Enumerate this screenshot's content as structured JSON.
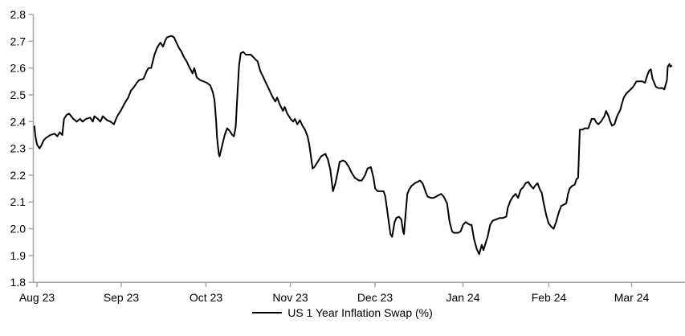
{
  "chart_data": {
    "type": "line",
    "title": "",
    "grid": false,
    "legend": {
      "position": "bottom-center",
      "entries": [
        "US 1 Year Inflation Swap (%)"
      ]
    },
    "colors": {
      "line": "#000000",
      "axis": "#a6a6a6",
      "text": "#000000",
      "background": "#ffffff"
    },
    "x_axis": {
      "unit": "months since Aug 2023",
      "tick_labels": [
        "Aug 23",
        "Sep 23",
        "Oct 23",
        "Nov 23",
        "Dec 23",
        "Jan 24",
        "Feb 24",
        "Mar 24"
      ],
      "range": [
        0,
        7.65
      ]
    },
    "y_axis": {
      "label": "",
      "ticks": [
        1.8,
        1.9,
        2.0,
        2.1,
        2.2,
        2.3,
        2.4,
        2.5,
        2.6,
        2.7,
        2.8
      ],
      "tick_labels": [
        "1.8",
        "1.9",
        "2.0",
        "2.1",
        "2.2",
        "2.3",
        "2.4",
        "2.5",
        "2.6",
        "2.7",
        "2.8"
      ],
      "range": [
        1.8,
        2.8
      ]
    },
    "series": [
      {
        "name": "US 1 Year Inflation Swap (%)",
        "color": "#000000",
        "points": [
          [
            -0.03,
            2.385
          ],
          [
            -0.02,
            2.35
          ],
          [
            0.0,
            2.315
          ],
          [
            0.03,
            2.3
          ],
          [
            0.05,
            2.31
          ],
          [
            0.08,
            2.33
          ],
          [
            0.11,
            2.34
          ],
          [
            0.16,
            2.35
          ],
          [
            0.21,
            2.355
          ],
          [
            0.24,
            2.345
          ],
          [
            0.27,
            2.36
          ],
          [
            0.3,
            2.35
          ],
          [
            0.32,
            2.41
          ],
          [
            0.35,
            2.425
          ],
          [
            0.38,
            2.43
          ],
          [
            0.43,
            2.41
          ],
          [
            0.47,
            2.4
          ],
          [
            0.51,
            2.41
          ],
          [
            0.54,
            2.4
          ],
          [
            0.58,
            2.41
          ],
          [
            0.63,
            2.415
          ],
          [
            0.66,
            2.4
          ],
          [
            0.68,
            2.42
          ],
          [
            0.72,
            2.41
          ],
          [
            0.75,
            2.4
          ],
          [
            0.78,
            2.42
          ],
          [
            0.83,
            2.405
          ],
          [
            0.87,
            2.4
          ],
          [
            0.91,
            2.39
          ],
          [
            0.95,
            2.42
          ],
          [
            0.99,
            2.44
          ],
          [
            1.04,
            2.47
          ],
          [
            1.08,
            2.49
          ],
          [
            1.11,
            2.515
          ],
          [
            1.15,
            2.53
          ],
          [
            1.18,
            2.545
          ],
          [
            1.21,
            2.555
          ],
          [
            1.26,
            2.56
          ],
          [
            1.3,
            2.59
          ],
          [
            1.32,
            2.6
          ],
          [
            1.35,
            2.6
          ],
          [
            1.39,
            2.65
          ],
          [
            1.42,
            2.675
          ],
          [
            1.46,
            2.695
          ],
          [
            1.49,
            2.68
          ],
          [
            1.52,
            2.705
          ],
          [
            1.54,
            2.715
          ],
          [
            1.59,
            2.72
          ],
          [
            1.62,
            2.715
          ],
          [
            1.65,
            2.695
          ],
          [
            1.68,
            2.675
          ],
          [
            1.71,
            2.66
          ],
          [
            1.74,
            2.64
          ],
          [
            1.77,
            2.625
          ],
          [
            1.8,
            2.605
          ],
          [
            1.84,
            2.58
          ],
          [
            1.86,
            2.6
          ],
          [
            1.89,
            2.565
          ],
          [
            1.93,
            2.555
          ],
          [
            1.97,
            2.55
          ],
          [
            2.01,
            2.545
          ],
          [
            2.05,
            2.535
          ],
          [
            2.08,
            2.51
          ],
          [
            2.1,
            2.48
          ],
          [
            2.12,
            2.4
          ],
          [
            2.13,
            2.34
          ],
          [
            2.15,
            2.28
          ],
          [
            2.16,
            2.27
          ],
          [
            2.19,
            2.31
          ],
          [
            2.22,
            2.35
          ],
          [
            2.25,
            2.375
          ],
          [
            2.28,
            2.365
          ],
          [
            2.31,
            2.35
          ],
          [
            2.33,
            2.345
          ],
          [
            2.35,
            2.38
          ],
          [
            2.37,
            2.5
          ],
          [
            2.39,
            2.61
          ],
          [
            2.41,
            2.655
          ],
          [
            2.44,
            2.66
          ],
          [
            2.47,
            2.65
          ],
          [
            2.5,
            2.65
          ],
          [
            2.53,
            2.65
          ],
          [
            2.56,
            2.64
          ],
          [
            2.59,
            2.63
          ],
          [
            2.61,
            2.625
          ],
          [
            2.64,
            2.59
          ],
          [
            2.67,
            2.57
          ],
          [
            2.7,
            2.55
          ],
          [
            2.73,
            2.53
          ],
          [
            2.76,
            2.51
          ],
          [
            2.79,
            2.49
          ],
          [
            2.82,
            2.475
          ],
          [
            2.84,
            2.49
          ],
          [
            2.87,
            2.465
          ],
          [
            2.91,
            2.44
          ],
          [
            2.93,
            2.455
          ],
          [
            2.96,
            2.43
          ],
          [
            3.0,
            2.41
          ],
          [
            3.03,
            2.4
          ],
          [
            3.05,
            2.41
          ],
          [
            3.08,
            2.39
          ],
          [
            3.11,
            2.405
          ],
          [
            3.14,
            2.385
          ],
          [
            3.17,
            2.37
          ],
          [
            3.2,
            2.345
          ],
          [
            3.22,
            2.315
          ],
          [
            3.26,
            2.225
          ],
          [
            3.28,
            2.23
          ],
          [
            3.32,
            2.25
          ],
          [
            3.36,
            2.27
          ],
          [
            3.41,
            2.28
          ],
          [
            3.44,
            2.26
          ],
          [
            3.47,
            2.22
          ],
          [
            3.5,
            2.14
          ],
          [
            3.53,
            2.17
          ],
          [
            3.55,
            2.2
          ],
          [
            3.58,
            2.25
          ],
          [
            3.62,
            2.255
          ],
          [
            3.65,
            2.25
          ],
          [
            3.69,
            2.23
          ],
          [
            3.72,
            2.21
          ],
          [
            3.76,
            2.19
          ],
          [
            3.81,
            2.18
          ],
          [
            3.84,
            2.18
          ],
          [
            3.88,
            2.2
          ],
          [
            3.91,
            2.225
          ],
          [
            3.95,
            2.23
          ],
          [
            3.98,
            2.19
          ],
          [
            4.0,
            2.15
          ],
          [
            4.03,
            2.14
          ],
          [
            4.06,
            2.14
          ],
          [
            4.1,
            2.14
          ],
          [
            4.12,
            2.12
          ],
          [
            4.15,
            2.05
          ],
          [
            4.18,
            1.98
          ],
          [
            4.2,
            1.97
          ],
          [
            4.23,
            2.025
          ],
          [
            4.25,
            2.04
          ],
          [
            4.28,
            2.045
          ],
          [
            4.31,
            2.035
          ],
          [
            4.33,
            1.99
          ],
          [
            4.34,
            1.98
          ],
          [
            4.38,
            2.13
          ],
          [
            4.4,
            2.145
          ],
          [
            4.43,
            2.16
          ],
          [
            4.47,
            2.17
          ],
          [
            4.5,
            2.175
          ],
          [
            4.53,
            2.18
          ],
          [
            4.56,
            2.17
          ],
          [
            4.6,
            2.135
          ],
          [
            4.62,
            2.12
          ],
          [
            4.66,
            2.115
          ],
          [
            4.69,
            2.115
          ],
          [
            4.72,
            2.12
          ],
          [
            4.75,
            2.125
          ],
          [
            4.78,
            2.13
          ],
          [
            4.81,
            2.12
          ],
          [
            4.85,
            2.095
          ],
          [
            4.88,
            2.025
          ],
          [
            4.91,
            1.99
          ],
          [
            4.93,
            1.985
          ],
          [
            4.98,
            1.985
          ],
          [
            5.01,
            1.99
          ],
          [
            5.04,
            2.015
          ],
          [
            5.07,
            2.025
          ],
          [
            5.09,
            2.02
          ],
          [
            5.12,
            2.015
          ],
          [
            5.14,
            2.015
          ],
          [
            5.17,
            1.96
          ],
          [
            5.2,
            1.925
          ],
          [
            5.23,
            1.905
          ],
          [
            5.26,
            1.94
          ],
          [
            5.28,
            1.92
          ],
          [
            5.31,
            1.95
          ],
          [
            5.33,
            1.97
          ],
          [
            5.36,
            2.015
          ],
          [
            5.39,
            2.03
          ],
          [
            5.43,
            2.035
          ],
          [
            5.47,
            2.04
          ],
          [
            5.51,
            2.04
          ],
          [
            5.55,
            2.045
          ],
          [
            5.57,
            2.08
          ],
          [
            5.6,
            2.105
          ],
          [
            5.63,
            2.12
          ],
          [
            5.66,
            2.13
          ],
          [
            5.69,
            2.115
          ],
          [
            5.72,
            2.145
          ],
          [
            5.75,
            2.155
          ],
          [
            5.78,
            2.17
          ],
          [
            5.81,
            2.175
          ],
          [
            5.84,
            2.16
          ],
          [
            5.87,
            2.15
          ],
          [
            5.89,
            2.16
          ],
          [
            5.92,
            2.17
          ],
          [
            5.95,
            2.145
          ],
          [
            5.97,
            2.135
          ],
          [
            5.99,
            2.1
          ],
          [
            6.02,
            2.055
          ],
          [
            6.05,
            2.02
          ],
          [
            6.09,
            2.005
          ],
          [
            6.11,
            2.0
          ],
          [
            6.14,
            2.025
          ],
          [
            6.17,
            2.06
          ],
          [
            6.2,
            2.085
          ],
          [
            6.23,
            2.09
          ],
          [
            6.26,
            2.095
          ],
          [
            6.28,
            2.13
          ],
          [
            6.3,
            2.15
          ],
          [
            6.33,
            2.16
          ],
          [
            6.36,
            2.165
          ],
          [
            6.38,
            2.185
          ],
          [
            6.4,
            2.19
          ],
          [
            6.42,
            2.37
          ],
          [
            6.45,
            2.37
          ],
          [
            6.48,
            2.375
          ],
          [
            6.52,
            2.375
          ],
          [
            6.56,
            2.41
          ],
          [
            6.59,
            2.41
          ],
          [
            6.62,
            2.395
          ],
          [
            6.64,
            2.39
          ],
          [
            6.67,
            2.4
          ],
          [
            6.69,
            2.41
          ],
          [
            6.71,
            2.42
          ],
          [
            6.73,
            2.44
          ],
          [
            6.76,
            2.42
          ],
          [
            6.78,
            2.4
          ],
          [
            6.8,
            2.385
          ],
          [
            6.83,
            2.39
          ],
          [
            6.86,
            2.42
          ],
          [
            6.9,
            2.445
          ],
          [
            6.92,
            2.47
          ],
          [
            6.94,
            2.49
          ],
          [
            6.97,
            2.505
          ],
          [
            7.02,
            2.52
          ],
          [
            7.05,
            2.53
          ],
          [
            7.07,
            2.54
          ],
          [
            7.09,
            2.55
          ],
          [
            7.13,
            2.55
          ],
          [
            7.16,
            2.55
          ],
          [
            7.19,
            2.545
          ],
          [
            7.22,
            2.575
          ],
          [
            7.24,
            2.59
          ],
          [
            7.26,
            2.595
          ],
          [
            7.28,
            2.56
          ],
          [
            7.32,
            2.53
          ],
          [
            7.35,
            2.525
          ],
          [
            7.38,
            2.525
          ],
          [
            7.4,
            2.525
          ],
          [
            7.42,
            2.52
          ],
          [
            7.45,
            2.555
          ],
          [
            7.46,
            2.605
          ],
          [
            7.48,
            2.615
          ],
          [
            7.49,
            2.605
          ],
          [
            7.51,
            2.61
          ]
        ]
      }
    ]
  }
}
